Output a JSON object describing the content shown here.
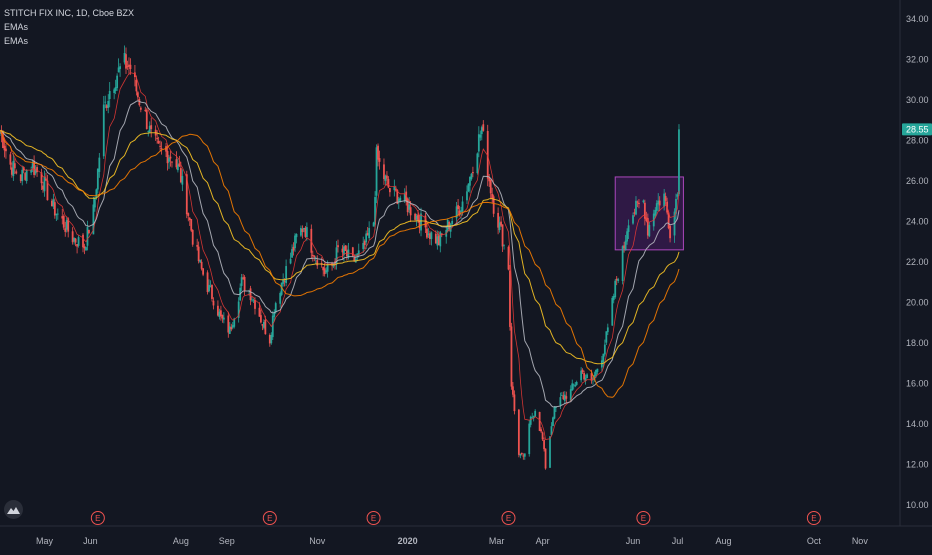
{
  "header": {
    "symbol_line": "STITCH FIX INC, 1D, Cboe BZX",
    "indicators": [
      "EMAs",
      "EMAs"
    ]
  },
  "colors": {
    "background": "#131722",
    "up": "#26a69a",
    "down": "#ef5350",
    "ema_fast": "#b2b5be",
    "ema_mid": "#f7c325",
    "ema_slow": "#f57c00",
    "ema_red": "#e53935",
    "box_fill": "#7b1fa2",
    "box_border": "#ab47bc",
    "earnings": "#ef5350",
    "price_badge": "#26a69a"
  },
  "chart_data": {
    "type": "candlestick",
    "symbol": "STITCH FIX INC",
    "interval": "1D",
    "exchange": "Cboe BZX",
    "x_tick_labels": [
      "May",
      "Jun",
      "Aug",
      "Sep",
      "Nov",
      "2020",
      "Mar",
      "Apr",
      "Jun",
      "Jul",
      "Aug",
      "Oct",
      "Nov"
    ],
    "y_ticks": [
      "10.00",
      "12.00",
      "14.00",
      "16.00",
      "18.00",
      "20.00",
      "22.00",
      "24.00",
      "26.00",
      "28.00",
      "30.00",
      "32.00",
      "34.00"
    ],
    "ylim": [
      9.3,
      35.0
    ],
    "last_price": "28.55",
    "earnings_marker_label": "E",
    "earnings_markers": [
      "2019-06-06",
      "2019-09-30",
      "2019-12-09",
      "2020-03-09",
      "2020-06-08",
      "2020-10-01"
    ],
    "highlight_box": {
      "start": "2020-05-20",
      "end": "2020-07-05",
      "price_low": 22.6,
      "price_high": 26.2
    },
    "price_anchors": [
      [
        "2019-04-01",
        28.5
      ],
      [
        "2019-04-08",
        26.8
      ],
      [
        "2019-04-15",
        26.2
      ],
      [
        "2019-04-22",
        26.8
      ],
      [
        "2019-04-29",
        26.2
      ],
      [
        "2019-05-06",
        24.8
      ],
      [
        "2019-05-13",
        24.0
      ],
      [
        "2019-05-20",
        23.2
      ],
      [
        "2019-05-28",
        22.8
      ],
      [
        "2019-06-03",
        24.5
      ],
      [
        "2019-06-06",
        26.5
      ],
      [
        "2019-06-10",
        29.5
      ],
      [
        "2019-06-14",
        30.5
      ],
      [
        "2019-06-19",
        31.3
      ],
      [
        "2019-06-24",
        31.8
      ],
      [
        "2019-06-28",
        31.6
      ],
      [
        "2019-07-03",
        30.2
      ],
      [
        "2019-07-08",
        29.2
      ],
      [
        "2019-07-12",
        28.2
      ],
      [
        "2019-07-17",
        27.5
      ],
      [
        "2019-07-22",
        27.4
      ],
      [
        "2019-07-26",
        27.2
      ],
      [
        "2019-07-31",
        26.5
      ],
      [
        "2019-08-05",
        24.8
      ],
      [
        "2019-08-09",
        23.2
      ],
      [
        "2019-08-14",
        21.8
      ],
      [
        "2019-08-19",
        20.8
      ],
      [
        "2019-08-23",
        20.2
      ],
      [
        "2019-08-28",
        19.2
      ],
      [
        "2019-09-03",
        18.6
      ],
      [
        "2019-09-06",
        19.5
      ],
      [
        "2019-09-11",
        21.0
      ],
      [
        "2019-09-16",
        20.6
      ],
      [
        "2019-09-20",
        20.0
      ],
      [
        "2019-09-25",
        19.0
      ],
      [
        "2019-09-30",
        18.2
      ],
      [
        "2019-10-03",
        19.8
      ],
      [
        "2019-10-08",
        21.0
      ],
      [
        "2019-10-14",
        22.2
      ],
      [
        "2019-10-18",
        23.2
      ],
      [
        "2019-10-23",
        23.8
      ],
      [
        "2019-10-28",
        22.8
      ],
      [
        "2019-11-01",
        22.2
      ],
      [
        "2019-11-06",
        21.5
      ],
      [
        "2019-11-11",
        21.8
      ],
      [
        "2019-11-15",
        22.6
      ],
      [
        "2019-11-20",
        22.4
      ],
      [
        "2019-11-25",
        22.0
      ],
      [
        "2019-12-02",
        22.6
      ],
      [
        "2019-12-06",
        23.4
      ],
      [
        "2019-12-09",
        24.0
      ],
      [
        "2019-12-11",
        27.2
      ],
      [
        "2019-12-16",
        26.2
      ],
      [
        "2019-12-20",
        25.5
      ],
      [
        "2019-12-27",
        25.2
      ],
      [
        "2020-01-03",
        24.6
      ],
      [
        "2020-01-10",
        24.0
      ],
      [
        "2020-01-16",
        23.4
      ],
      [
        "2020-01-22",
        23.0
      ],
      [
        "2020-01-28",
        23.8
      ],
      [
        "2020-02-03",
        24.4
      ],
      [
        "2020-02-07",
        25.0
      ],
      [
        "2020-02-12",
        26.2
      ],
      [
        "2020-02-17",
        27.8
      ],
      [
        "2020-02-20",
        28.6
      ],
      [
        "2020-02-24",
        26.5
      ],
      [
        "2020-02-28",
        24.8
      ],
      [
        "2020-03-04",
        23.5
      ],
      [
        "2020-03-09",
        21.8
      ],
      [
        "2020-03-11",
        16.0
      ],
      [
        "2020-03-16",
        12.6
      ],
      [
        "2020-03-19",
        12.2
      ],
      [
        "2020-03-24",
        14.2
      ],
      [
        "2020-03-27",
        14.8
      ],
      [
        "2020-04-01",
        13.2
      ],
      [
        "2020-04-03",
        11.9
      ],
      [
        "2020-04-08",
        14.5
      ],
      [
        "2020-04-14",
        15.3
      ],
      [
        "2020-04-20",
        15.6
      ],
      [
        "2020-04-27",
        16.6
      ],
      [
        "2020-05-04",
        16.0
      ],
      [
        "2020-05-11",
        17.4
      ],
      [
        "2020-05-15",
        18.6
      ],
      [
        "2020-05-20",
        20.8
      ],
      [
        "2020-05-26",
        22.8
      ],
      [
        "2020-05-29",
        24.2
      ],
      [
        "2020-06-03",
        24.6
      ],
      [
        "2020-06-08",
        25.0
      ],
      [
        "2020-06-11",
        23.6
      ],
      [
        "2020-06-16",
        24.8
      ],
      [
        "2020-06-22",
        25.3
      ],
      [
        "2020-06-26",
        23.6
      ],
      [
        "2020-06-29",
        24.5
      ],
      [
        "2020-07-01",
        25.8
      ],
      [
        "2020-07-02",
        28.55
      ]
    ]
  }
}
